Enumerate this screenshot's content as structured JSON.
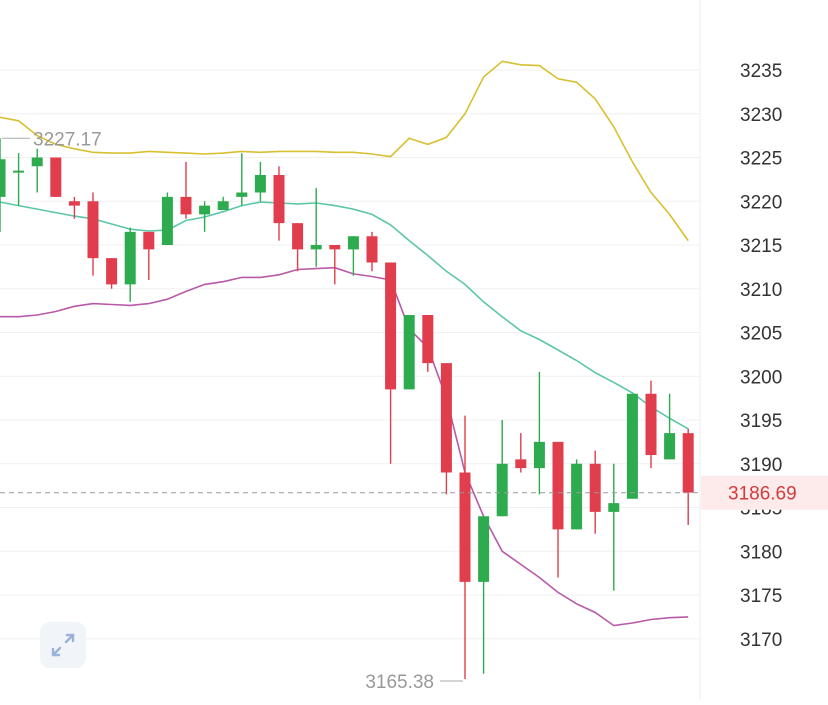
{
  "chart_data": {
    "type": "candlestick",
    "y_axis": {
      "ticks": [
        3235,
        3230,
        3225,
        3220,
        3215,
        3210,
        3205,
        3200,
        3195,
        3190,
        3185,
        3180,
        3175,
        3170
      ],
      "tick_labels": [
        "3235",
        "3230",
        "3225",
        "3220",
        "3215",
        "3210",
        "3205",
        "3200",
        "3195",
        "3190",
        "3185",
        "3180",
        "3175",
        "3170"
      ],
      "position": "right"
    },
    "grid": true,
    "colors": {
      "up": "#2eaa4f",
      "down": "#e03e4c",
      "upper_band": "#d8c030",
      "middle_band": "#5bc7a6",
      "lower_band": "#b85aa8",
      "last_price": "#d23c3c"
    },
    "candles": [
      {
        "o": 3220.5,
        "h": 3227.2,
        "c": 3224.8,
        "l": 3216.5
      },
      {
        "o": 3223.5,
        "h": 3225.5,
        "c": 3223.5,
        "l": 3219.5
      },
      {
        "o": 3224.0,
        "h": 3226.0,
        "c": 3225.0,
        "l": 3221.0
      },
      {
        "o": 3225.0,
        "h": 3225.0,
        "c": 3220.5,
        "l": 3220.5
      },
      {
        "o": 3220.0,
        "h": 3220.5,
        "c": 3219.5,
        "l": 3218.0
      },
      {
        "o": 3220.0,
        "h": 3221.0,
        "c": 3213.5,
        "l": 3211.5
      },
      {
        "o": 3213.5,
        "h": 3213.5,
        "c": 3210.5,
        "l": 3210.0
      },
      {
        "o": 3210.5,
        "h": 3217.0,
        "c": 3216.5,
        "l": 3208.5
      },
      {
        "o": 3216.5,
        "h": 3216.5,
        "c": 3214.5,
        "l": 3211.0
      },
      {
        "o": 3215.0,
        "h": 3221.0,
        "c": 3220.5,
        "l": 3215.0
      },
      {
        "o": 3220.5,
        "h": 3224.5,
        "c": 3218.5,
        "l": 3218.0
      },
      {
        "o": 3218.5,
        "h": 3220.0,
        "c": 3219.5,
        "l": 3216.5
      },
      {
        "o": 3219.0,
        "h": 3220.5,
        "c": 3220.0,
        "l": 3219.0
      },
      {
        "o": 3220.5,
        "h": 3225.5,
        "c": 3221.0,
        "l": 3219.5
      },
      {
        "o": 3221.0,
        "h": 3224.5,
        "c": 3223.0,
        "l": 3220.0
      },
      {
        "o": 3223.0,
        "h": 3224.0,
        "c": 3217.5,
        "l": 3215.5
      },
      {
        "o": 3217.5,
        "h": 3217.5,
        "c": 3214.5,
        "l": 3212.0
      },
      {
        "o": 3214.5,
        "h": 3221.5,
        "c": 3215.0,
        "l": 3212.5
      },
      {
        "o": 3215.0,
        "h": 3215.0,
        "c": 3214.5,
        "l": 3210.5
      },
      {
        "o": 3214.5,
        "h": 3216.0,
        "c": 3216.0,
        "l": 3211.5
      },
      {
        "o": 3216.0,
        "h": 3216.5,
        "c": 3213.0,
        "l": 3212.0
      },
      {
        "o": 3213.0,
        "h": 3213.0,
        "c": 3198.5,
        "l": 3190.0
      },
      {
        "o": 3198.5,
        "h": 3207.0,
        "c": 3207.0,
        "l": 3198.5
      },
      {
        "o": 3207.0,
        "h": 3207.0,
        "c": 3201.5,
        "l": 3200.5
      },
      {
        "o": 3201.5,
        "h": 3201.5,
        "c": 3189.0,
        "l": 3186.5
      },
      {
        "o": 3189.0,
        "h": 3195.5,
        "c": 3176.5,
        "l": 3165.4
      },
      {
        "o": 3176.5,
        "h": 3184.0,
        "c": 3184.0,
        "l": 3166.0
      },
      {
        "o": 3184.0,
        "h": 3195.0,
        "c": 3190.0,
        "l": 3184.0
      },
      {
        "o": 3190.5,
        "h": 3193.5,
        "c": 3189.5,
        "l": 3189.0
      },
      {
        "o": 3189.5,
        "h": 3200.5,
        "c": 3192.5,
        "l": 3186.5
      },
      {
        "o": 3192.5,
        "h": 3192.5,
        "c": 3182.5,
        "l": 3177.0
      },
      {
        "o": 3182.5,
        "h": 3190.5,
        "c": 3190.0,
        "l": 3182.5
      },
      {
        "o": 3190.0,
        "h": 3191.5,
        "c": 3184.5,
        "l": 3182.0
      },
      {
        "o": 3184.5,
        "h": 3190.0,
        "c": 3185.5,
        "l": 3175.5
      },
      {
        "o": 3186.0,
        "h": 3198.0,
        "c": 3198.0,
        "l": 3186.0
      },
      {
        "o": 3198.0,
        "h": 3199.5,
        "c": 3191.0,
        "l": 3189.5
      },
      {
        "o": 3190.5,
        "h": 3198.0,
        "c": 3193.5,
        "l": 3190.5
      },
      {
        "o": 3193.5,
        "h": 3194.0,
        "c": 3186.7,
        "l": 3183.0
      }
    ],
    "upper_band": [
      3229.6,
      3229.2,
      3227.5,
      3226.5,
      3226.0,
      3225.6,
      3225.5,
      3225.5,
      3225.7,
      3225.6,
      3225.5,
      3225.4,
      3225.5,
      3225.7,
      3225.6,
      3225.7,
      3225.7,
      3225.7,
      3225.6,
      3225.6,
      3225.4,
      3225.1,
      3227.2,
      3226.5,
      3227.3,
      3230.0,
      3234.2,
      3236.0,
      3235.6,
      3235.5,
      3234.0,
      3233.6,
      3231.7,
      3228.5,
      3224.5,
      3221.0,
      3218.5,
      3215.5
    ],
    "middle_band": [
      3219.9,
      3219.5,
      3219.1,
      3218.7,
      3218.3,
      3218.0,
      3217.4,
      3216.8,
      3216.6,
      3216.7,
      3217.8,
      3218.2,
      3218.8,
      3219.5,
      3219.9,
      3219.8,
      3219.7,
      3219.8,
      3219.5,
      3219.1,
      3218.5,
      3217.3,
      3215.5,
      3213.8,
      3212.0,
      3210.5,
      3208.5,
      3206.8,
      3205.2,
      3204.2,
      3203.0,
      3201.8,
      3200.4,
      3199.3,
      3198.1,
      3196.5,
      3195.2,
      3194.0
    ],
    "lower_band": [
      3206.8,
      3206.8,
      3207.0,
      3207.4,
      3208.0,
      3208.3,
      3208.2,
      3208.1,
      3208.3,
      3208.8,
      3209.7,
      3210.5,
      3210.8,
      3211.3,
      3211.3,
      3211.6,
      3212.2,
      3212.3,
      3212.4,
      3211.7,
      3211.4,
      3211.0,
      3205.4,
      3203.3,
      3197.5,
      3189.0,
      3184.0,
      3180.0,
      3178.5,
      3177.0,
      3175.3,
      3174.0,
      3173.0,
      3171.5,
      3171.8,
      3172.2,
      3172.4,
      3172.5
    ],
    "annotations": {
      "high_label": "3227.17",
      "low_label": "3165.38",
      "last_price_label": "3186.69",
      "last_price": 3186.69
    }
  },
  "controls": {
    "expand_icon": "expand-diagonal-icon"
  }
}
